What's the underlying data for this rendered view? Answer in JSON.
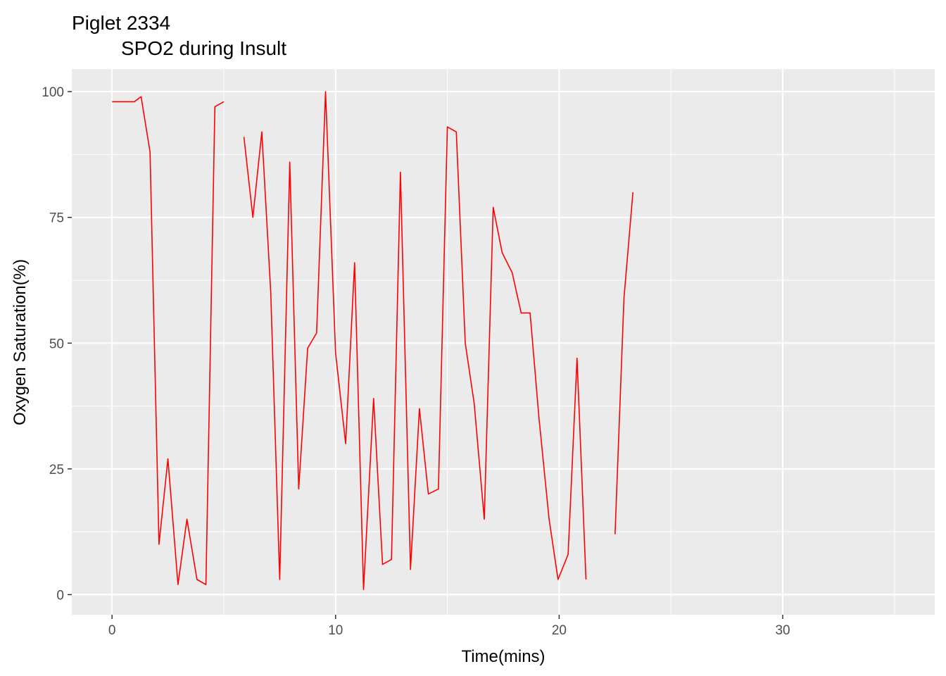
{
  "chart_data": {
    "type": "line",
    "title": "Piglet 2334",
    "subtitle": "SPO2 during Insult",
    "xlabel": "Time(mins)",
    "ylabel": "Oxygen Saturation(%)",
    "xlim": [
      -1.8,
      36.8
    ],
    "ylim": [
      -4,
      104.5
    ],
    "xticks": [
      0,
      10,
      20,
      30
    ],
    "yticks": [
      0,
      25,
      50,
      75,
      100
    ],
    "grid": true,
    "legend": "none",
    "colors": {
      "line": "#ff0000",
      "panel": "#ebebeb",
      "grid": "#ffffff",
      "tick_label": "#4d4d4d",
      "tick_mark": "#333333"
    },
    "series": [
      {
        "segments": [
          [
            [
              0,
              98
            ],
            [
              1,
              98
            ],
            [
              1.3,
              99
            ],
            [
              1.7,
              88
            ],
            [
              2.1,
              10
            ],
            [
              2.5,
              27
            ],
            [
              2.95,
              2
            ],
            [
              3.35,
              15
            ],
            [
              3.8,
              3
            ],
            [
              4.2,
              2
            ],
            [
              4.6,
              97
            ],
            [
              5.0,
              98
            ]
          ],
          [
            [
              5.9,
              91
            ],
            [
              6.3,
              75
            ],
            [
              6.7,
              92
            ],
            [
              7.1,
              60
            ],
            [
              7.5,
              3
            ],
            [
              7.95,
              86
            ],
            [
              8.35,
              21
            ],
            [
              8.75,
              49
            ],
            [
              9.15,
              52
            ],
            [
              9.55,
              100
            ],
            [
              10.0,
              48
            ],
            [
              10.45,
              30
            ],
            [
              10.85,
              66
            ],
            [
              11.25,
              1
            ],
            [
              11.7,
              39
            ],
            [
              12.1,
              6
            ],
            [
              12.5,
              7
            ],
            [
              12.9,
              84
            ],
            [
              13.35,
              5
            ],
            [
              13.75,
              37
            ],
            [
              14.15,
              20
            ],
            [
              14.6,
              21
            ],
            [
              15.0,
              93
            ],
            [
              15.4,
              92
            ],
            [
              15.8,
              50
            ],
            [
              16.2,
              38
            ],
            [
              16.65,
              15
            ],
            [
              17.05,
              77
            ],
            [
              17.45,
              68
            ],
            [
              17.9,
              64
            ],
            [
              18.3,
              56
            ],
            [
              18.7,
              56
            ],
            [
              19.1,
              35
            ],
            [
              19.55,
              15
            ],
            [
              19.95,
              3
            ],
            [
              20.4,
              8
            ],
            [
              20.8,
              47
            ],
            [
              21.2,
              3
            ]
          ],
          [
            [
              22.5,
              12
            ],
            [
              22.9,
              59
            ],
            [
              23.3,
              80
            ]
          ]
        ]
      }
    ]
  }
}
